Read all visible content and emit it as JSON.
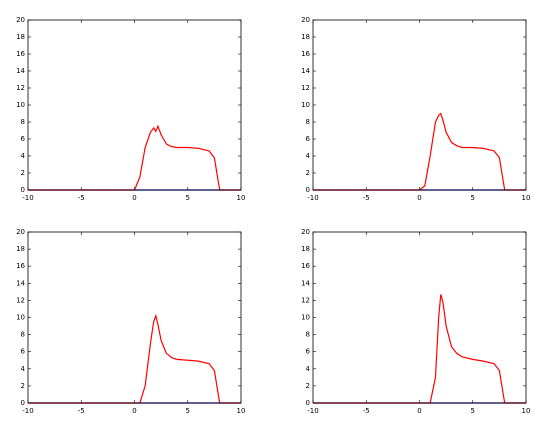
{
  "chart_data": [
    {
      "type": "line",
      "x": [
        -10,
        -5,
        0,
        0.5,
        1,
        1.5,
        1.8,
        2,
        2.2,
        2.5,
        3,
        3.5,
        4,
        5,
        6,
        7,
        7.5,
        7.8,
        8,
        10
      ],
      "series": [
        {
          "color": "#0000cc",
          "values": [
            0,
            0,
            0,
            0,
            0,
            0,
            0,
            0,
            0,
            0,
            0,
            0,
            0,
            0,
            0,
            0,
            0,
            0,
            0,
            0
          ]
        },
        {
          "color": "#ff0000",
          "values": [
            0,
            0,
            0,
            1.5,
            5,
            6.8,
            7.3,
            6.9,
            7.5,
            6.5,
            5.4,
            5.1,
            5,
            5,
            4.9,
            4.6,
            3.8,
            1.5,
            0,
            0
          ]
        }
      ],
      "xlim": [
        -10,
        10
      ],
      "ylim": [
        0,
        20
      ],
      "xticks": [
        -10,
        -5,
        0,
        5,
        10
      ],
      "yticks": [
        0,
        2,
        4,
        6,
        8,
        10,
        12,
        14,
        16,
        18,
        20
      ],
      "grid": false
    },
    {
      "type": "line",
      "x": [
        -10,
        -5,
        0,
        0.5,
        1,
        1.5,
        1.8,
        2,
        2.2,
        2.5,
        3,
        3.5,
        4,
        5,
        6,
        7,
        7.5,
        7.8,
        8,
        10
      ],
      "series": [
        {
          "color": "#0000cc",
          "values": [
            0,
            0,
            0,
            0,
            0,
            0,
            0,
            0,
            0,
            0,
            0,
            0,
            0,
            0,
            0,
            0,
            0,
            0,
            0,
            0
          ]
        },
        {
          "color": "#ff0000",
          "values": [
            0,
            0,
            0,
            0.5,
            4,
            8,
            8.8,
            9,
            8.2,
            6.8,
            5.6,
            5.2,
            5,
            5,
            4.9,
            4.6,
            3.8,
            1.5,
            0,
            0
          ]
        }
      ],
      "xlim": [
        -10,
        10
      ],
      "ylim": [
        0,
        20
      ],
      "xticks": [
        -10,
        -5,
        0,
        5,
        10
      ],
      "yticks": [
        0,
        2,
        4,
        6,
        8,
        10,
        12,
        14,
        16,
        18,
        20
      ],
      "grid": false
    },
    {
      "type": "line",
      "x": [
        -10,
        -5,
        0,
        0.5,
        1,
        1.5,
        1.8,
        2,
        2.2,
        2.5,
        3,
        3.5,
        4,
        5,
        6,
        7,
        7.5,
        7.8,
        8,
        10
      ],
      "series": [
        {
          "color": "#0000cc",
          "values": [
            0,
            0,
            0,
            0,
            0,
            0,
            0,
            0,
            0,
            0,
            0,
            0,
            0,
            0,
            0,
            0,
            0,
            0,
            0,
            0
          ]
        },
        {
          "color": "#ff0000",
          "values": [
            0,
            0,
            0,
            0,
            2,
            7,
            9.5,
            10.2,
            9.2,
            7.3,
            5.8,
            5.3,
            5.1,
            5,
            4.9,
            4.6,
            3.8,
            1.5,
            0,
            0
          ]
        }
      ],
      "xlim": [
        -10,
        10
      ],
      "ylim": [
        0,
        20
      ],
      "xticks": [
        -10,
        -5,
        0,
        5,
        10
      ],
      "yticks": [
        0,
        2,
        4,
        6,
        8,
        10,
        12,
        14,
        16,
        18,
        20
      ],
      "grid": false
    },
    {
      "type": "line",
      "x": [
        -10,
        -5,
        0,
        0.5,
        1,
        1.5,
        1.8,
        2,
        2.2,
        2.5,
        3,
        3.5,
        4,
        5,
        6,
        7,
        7.5,
        7.8,
        8,
        10
      ],
      "series": [
        {
          "color": "#0000cc",
          "values": [
            0,
            0,
            0,
            0,
            0,
            0,
            0,
            0,
            0,
            0,
            0,
            0,
            0,
            0,
            0,
            0,
            0,
            0,
            0,
            0
          ]
        },
        {
          "color": "#ff0000",
          "values": [
            0,
            0,
            0,
            0,
            0,
            3,
            10,
            12.7,
            11.8,
            9,
            6.6,
            5.8,
            5.4,
            5.1,
            4.9,
            4.6,
            3.8,
            1.5,
            0,
            0
          ]
        }
      ],
      "xlim": [
        -10,
        10
      ],
      "ylim": [
        0,
        20
      ],
      "xticks": [
        -10,
        -5,
        0,
        5,
        10
      ],
      "yticks": [
        0,
        2,
        4,
        6,
        8,
        10,
        12,
        14,
        16,
        18,
        20
      ],
      "grid": false
    }
  ]
}
